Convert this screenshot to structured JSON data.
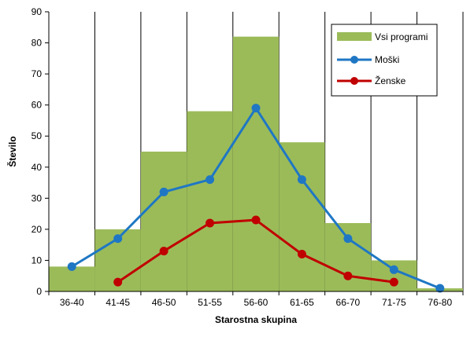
{
  "chart_data": {
    "type": "bar",
    "categories": [
      "36-40",
      "41-45",
      "46-50",
      "51-55",
      "56-60",
      "61-65",
      "66-70",
      "71-75",
      "76-80"
    ],
    "series": [
      {
        "name": "Vsi programi",
        "kind": "bar",
        "color": "#9bbb59",
        "values": [
          8,
          20,
          45,
          58,
          82,
          48,
          22,
          10,
          1
        ]
      },
      {
        "name": "Moški",
        "kind": "line",
        "color": "#1f77c4",
        "values": [
          8,
          17,
          32,
          36,
          59,
          36,
          17,
          7,
          1
        ]
      },
      {
        "name": "Ženske",
        "kind": "line",
        "color": "#c00000",
        "values": [
          null,
          3,
          13,
          22,
          23,
          12,
          5,
          3,
          null
        ]
      }
    ],
    "xlabel": "Starostna skupina",
    "ylabel": "Število",
    "ylim": [
      0,
      90
    ],
    "yticks": [
      0,
      10,
      20,
      30,
      40,
      50,
      60,
      70,
      80,
      90
    ],
    "grid": "vertical",
    "legend": "top-right"
  }
}
